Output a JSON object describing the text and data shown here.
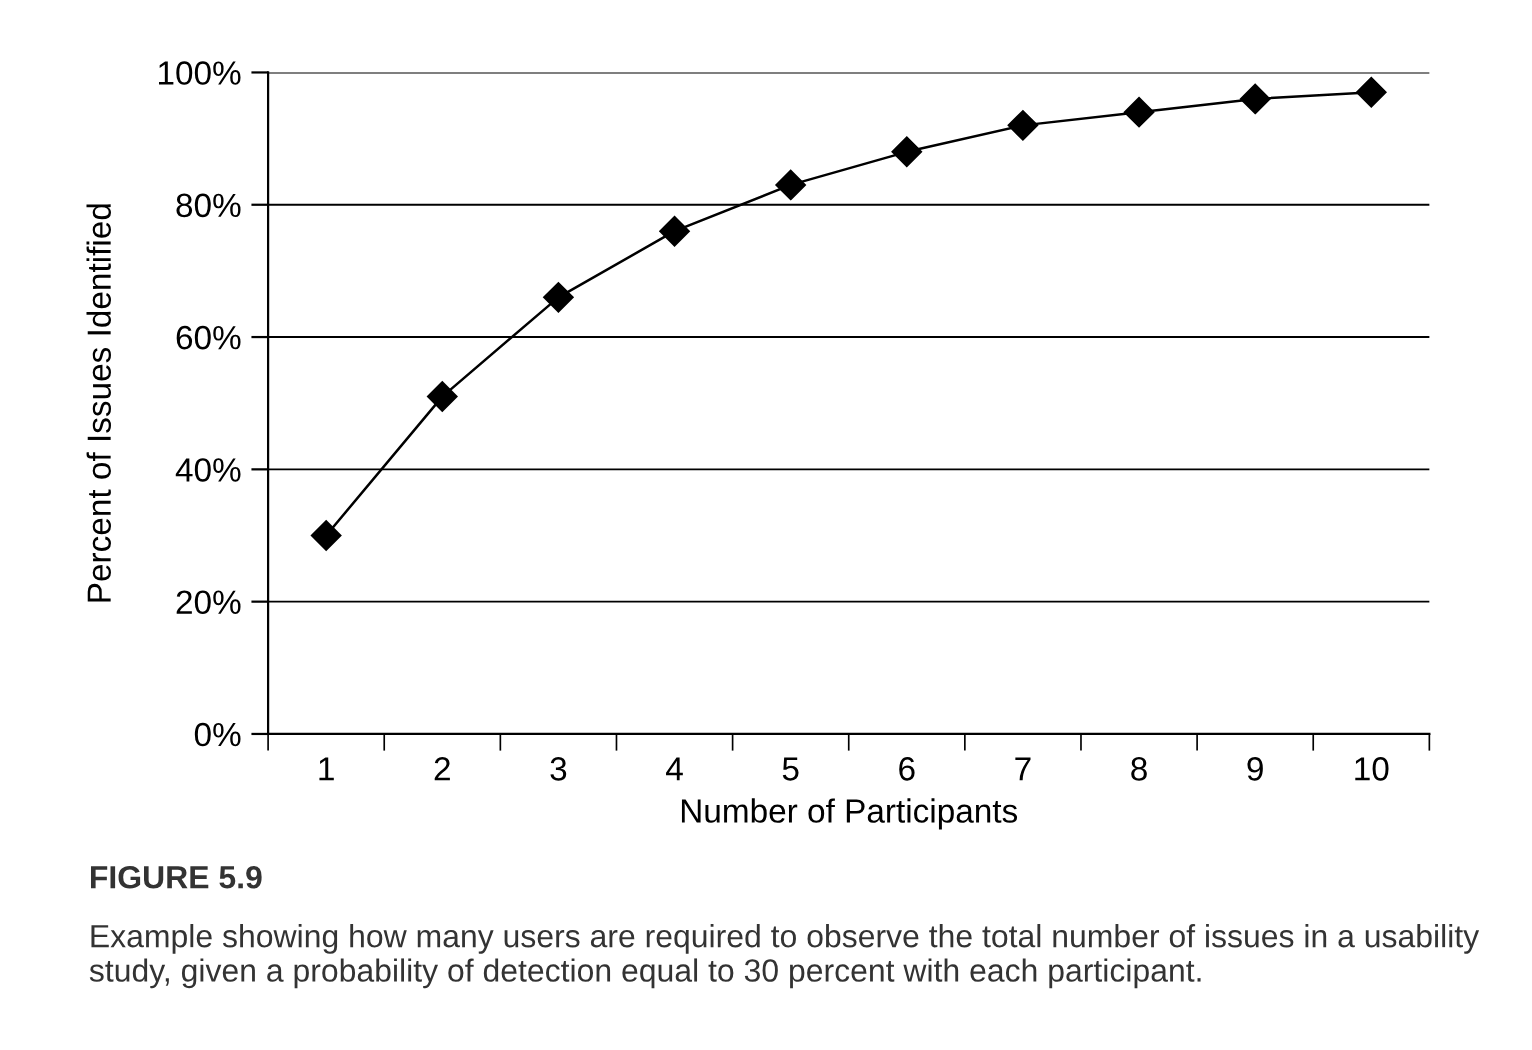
{
  "chart_data": {
    "type": "line",
    "categories": [
      "1",
      "2",
      "3",
      "4",
      "5",
      "6",
      "7",
      "8",
      "9",
      "10"
    ],
    "series": [
      {
        "color": "#000000",
        "values": [
          30,
          51,
          66,
          76,
          83,
          88,
          92,
          94,
          96,
          97
        ]
      }
    ],
    "xlabel": "Number of Participants",
    "ylabel": "Percent of Issues Identified",
    "ylim": [
      0,
      100
    ],
    "yticks": [
      {
        "value": 0,
        "label": "0%"
      },
      {
        "value": 20,
        "label": "20%"
      },
      {
        "value": 40,
        "label": "40%"
      },
      {
        "value": 60,
        "label": "60%"
      },
      {
        "value": 80,
        "label": "80%"
      },
      {
        "value": 100,
        "label": "100%"
      }
    ],
    "grid": "y",
    "marker": "diamond",
    "line_style": "solid",
    "annotations": [
      "FIGURE 5.9",
      "Example showing how many users are required to observe the total number of issues in a usability study, given a probability of detection equal to 30 percent with each participant."
    ]
  }
}
